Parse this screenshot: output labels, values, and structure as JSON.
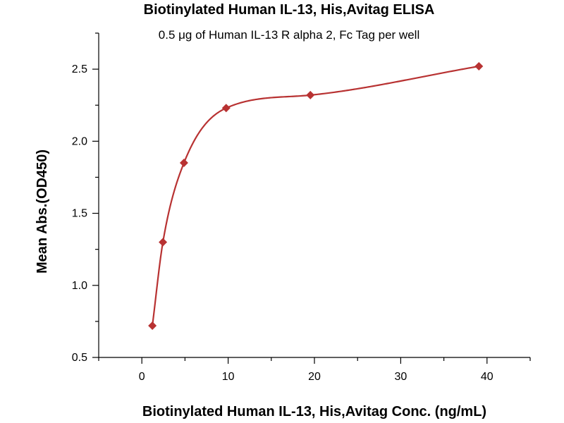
{
  "chart_data": {
    "type": "scatter",
    "title": "Biotinylated Human IL-13, His,Avitag ELISA",
    "subtitle": "0.5 μg of Human IL-13 R alpha 2, Fc Tag per well",
    "xlabel": "Biotinylated Human IL-13, His,Avitag Conc. (ng/mL)",
    "ylabel": "Mean Abs.(OD450)",
    "xlim": [
      -5,
      45
    ],
    "ylim": [
      0.5,
      2.75
    ],
    "x_ticks": [
      0,
      10,
      20,
      30,
      40
    ],
    "y_ticks": [
      0.5,
      1.0,
      1.5,
      2.0,
      2.5
    ],
    "x_tick_labels": [
      "0",
      "10",
      "20",
      "30",
      "40"
    ],
    "y_tick_labels": [
      "0.5",
      "1.0",
      "1.5",
      "2.0",
      "2.5"
    ],
    "grid": false,
    "series": [
      {
        "x": [
          1.22,
          2.44,
          4.88,
          9.77,
          19.53,
          39.06
        ],
        "y": [
          0.72,
          1.3,
          1.85,
          2.23,
          2.32,
          2.52
        ],
        "marker": "diamond",
        "color": "#b83232",
        "fit": "curve"
      }
    ]
  }
}
